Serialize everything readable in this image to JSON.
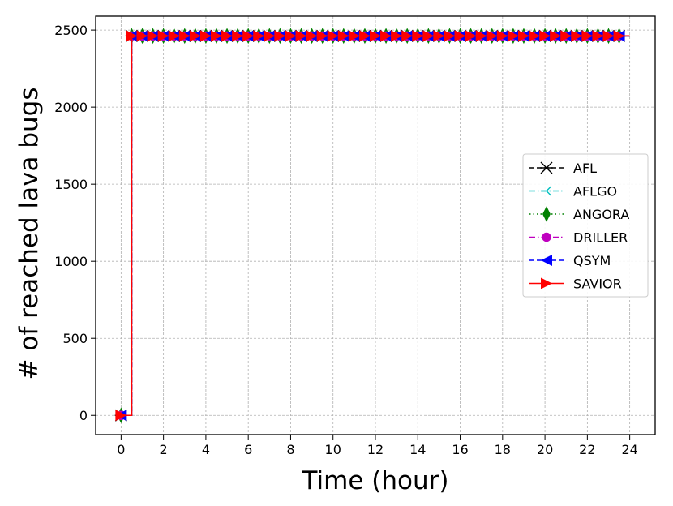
{
  "chart_data": {
    "type": "line",
    "xlabel": "Time (hour)",
    "ylabel": "# of reached lava bugs",
    "xlim": [
      -1.2,
      25.2
    ],
    "ylim": [
      -125,
      2590
    ],
    "xticks": [
      "0",
      "2",
      "4",
      "6",
      "8",
      "10",
      "12",
      "14",
      "16",
      "18",
      "20",
      "22",
      "24"
    ],
    "xtick_values": [
      0,
      2,
      4,
      6,
      8,
      10,
      12,
      14,
      16,
      18,
      20,
      22,
      24
    ],
    "yticks": [
      "0",
      "500",
      "1000",
      "1500",
      "2000",
      "2500"
    ],
    "ytick_values": [
      0,
      500,
      1000,
      1500,
      2000,
      2500
    ],
    "grid": true,
    "legend_position": "center-right",
    "x": [
      0,
      0.5,
      1,
      1.5,
      2,
      2.5,
      3,
      3.5,
      4,
      4.5,
      5,
      5.5,
      6,
      6.5,
      7,
      7.5,
      8,
      8.5,
      9,
      9.5,
      10,
      10.5,
      11,
      11.5,
      12,
      12.5,
      13,
      13.5,
      14,
      14.5,
      15,
      15.5,
      16,
      16.5,
      17,
      17.5,
      18,
      18.5,
      19,
      19.5,
      20,
      20.5,
      21,
      21.5,
      22,
      22.5,
      23,
      23.5,
      24
    ],
    "series": [
      {
        "name": "AFL",
        "color": "#000000",
        "line": "dashed",
        "marker": "x",
        "values": [
          0,
          2462,
          2462,
          2462,
          2462,
          2462,
          2462,
          2462,
          2462,
          2462,
          2462,
          2462,
          2462,
          2462,
          2462,
          2462,
          2462,
          2462,
          2462,
          2462,
          2462,
          2462,
          2462,
          2462,
          2462,
          2462,
          2462,
          2462,
          2462,
          2462,
          2462,
          2462,
          2462,
          2462,
          2462,
          2462,
          2462,
          2462,
          2462,
          2462,
          2462,
          2462,
          2462,
          2462,
          2462,
          2462,
          2462,
          2462,
          2462
        ]
      },
      {
        "name": "AFLGO",
        "color": "#00bfbf",
        "line": "dashdot",
        "marker": "tri_left",
        "values": [
          0,
          2462,
          2462,
          2462,
          2462,
          2462,
          2462,
          2462,
          2462,
          2462,
          2462,
          2462,
          2462,
          2462,
          2462,
          2462,
          2462,
          2462,
          2462,
          2462,
          2462,
          2462,
          2462,
          2462,
          2462,
          2462,
          2462,
          2462,
          2462,
          2462,
          2462,
          2462,
          2462,
          2462,
          2462,
          2462,
          2462,
          2462,
          2462,
          2462,
          2462,
          2462,
          2462,
          2462,
          2462,
          2462,
          2462,
          2462,
          2462
        ]
      },
      {
        "name": "ANGORA",
        "color": "#008000",
        "line": "dotted",
        "marker": "diamond",
        "values": [
          0,
          2462,
          2462,
          2462,
          2462,
          2462,
          2462,
          2462,
          2462,
          2462,
          2462,
          2462,
          2462,
          2462,
          2462,
          2462,
          2462,
          2462,
          2462,
          2462,
          2462,
          2462,
          2462,
          2462,
          2462,
          2462,
          2462,
          2462,
          2462,
          2462,
          2462,
          2462,
          2462,
          2462,
          2462,
          2462,
          2462,
          2462,
          2462,
          2462,
          2462,
          2462,
          2462,
          2462,
          2462,
          2462,
          2462,
          2462,
          2462
        ]
      },
      {
        "name": "DRILLER",
        "color": "#bf00bf",
        "line": "dashdot",
        "marker": "circle",
        "values": [
          0,
          2462,
          2462,
          2462,
          2462,
          2462,
          2462,
          2462,
          2462,
          2462,
          2462,
          2462,
          2462,
          2462,
          2462,
          2462,
          2462,
          2462,
          2462,
          2462,
          2462,
          2462,
          2462,
          2462,
          2462,
          2462,
          2462,
          2462,
          2462,
          2462,
          2462,
          2462,
          2462,
          2462,
          2462,
          2462,
          2462,
          2462,
          2462,
          2462,
          2462,
          2462,
          2462,
          2462,
          2462,
          2462,
          2462,
          2462,
          2462
        ]
      },
      {
        "name": "QSYM",
        "color": "#0000ff",
        "line": "dashed",
        "marker": "triangle_left",
        "values": [
          0,
          2462,
          2462,
          2462,
          2462,
          2462,
          2462,
          2462,
          2462,
          2462,
          2462,
          2462,
          2462,
          2462,
          2462,
          2462,
          2462,
          2462,
          2462,
          2462,
          2462,
          2462,
          2462,
          2462,
          2462,
          2462,
          2462,
          2462,
          2462,
          2462,
          2462,
          2462,
          2462,
          2462,
          2462,
          2462,
          2462,
          2462,
          2462,
          2462,
          2462,
          2462,
          2462,
          2462,
          2462,
          2462,
          2462,
          2462,
          2462
        ]
      },
      {
        "name": "SAVIOR",
        "color": "#ff0000",
        "line": "solid",
        "marker": "triangle_right",
        "values": [
          0,
          2462,
          2462,
          2462,
          2462,
          2462,
          2462,
          2462,
          2462,
          2462,
          2462,
          2462,
          2462,
          2462,
          2462,
          2462,
          2462,
          2462,
          2462,
          2462,
          2462,
          2462,
          2462,
          2462,
          2462,
          2462,
          2462,
          2462,
          2462,
          2462,
          2462,
          2462,
          2462,
          2462,
          2462,
          2462,
          2462,
          2462,
          2462,
          2462,
          2462,
          2462,
          2462,
          2462,
          2462,
          2462,
          2462,
          2462,
          2462
        ]
      }
    ]
  }
}
